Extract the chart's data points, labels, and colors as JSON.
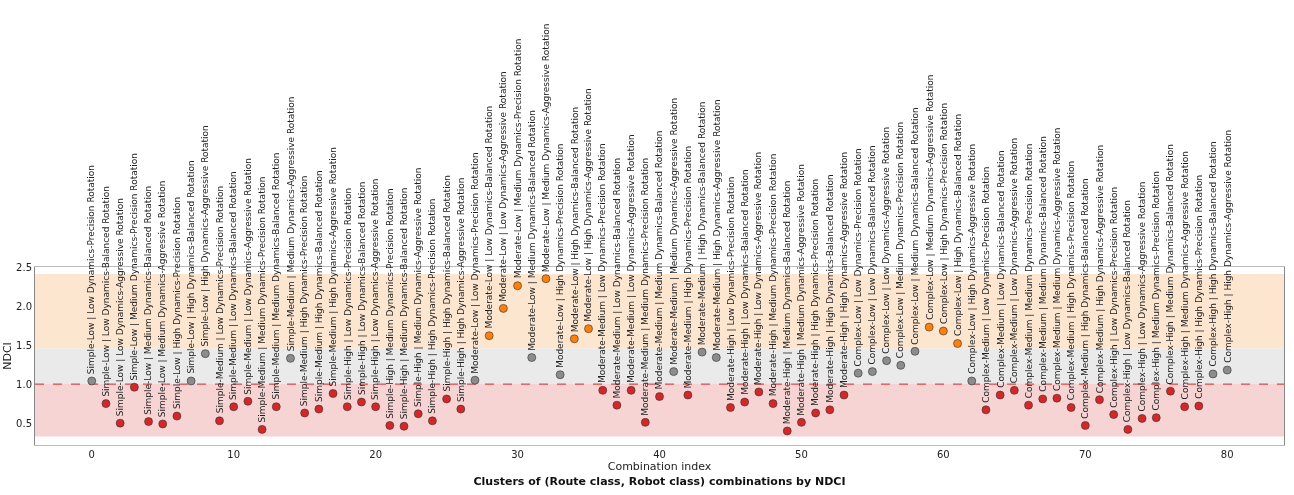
{
  "chart_data": {
    "type": "scatter",
    "title": "Clusters of (Route class, Robot class) combinations by NDCI",
    "xlabel": "Combination index",
    "ylabel": "NDCI",
    "x": [
      0,
      1,
      2,
      3,
      4,
      5,
      6,
      7,
      8,
      9,
      10,
      11,
      12,
      13,
      14,
      15,
      16,
      17,
      18,
      19,
      20,
      21,
      22,
      23,
      24,
      25,
      26,
      27,
      28,
      29,
      30,
      31,
      32,
      33,
      34,
      35,
      36,
      37,
      38,
      39,
      40,
      41,
      42,
      43,
      44,
      45,
      46,
      47,
      48,
      49,
      50,
      51,
      52,
      53,
      54,
      55,
      56,
      57,
      58,
      59,
      60,
      61,
      62,
      63,
      64,
      65,
      66,
      67,
      68,
      69,
      70,
      71,
      72,
      73,
      74,
      75,
      76,
      77,
      78,
      79,
      80
    ],
    "values": [
      1.04,
      0.75,
      0.5,
      0.96,
      0.52,
      0.49,
      0.59,
      1.04,
      1.39,
      0.53,
      0.71,
      0.78,
      0.42,
      0.71,
      1.33,
      0.63,
      0.68,
      0.88,
      0.71,
      0.77,
      0.71,
      0.47,
      0.46,
      0.62,
      0.53,
      0.81,
      0.68,
      1.05,
      1.62,
      1.97,
      2.26,
      1.34,
      2.35,
      1.12,
      1.58,
      1.71,
      0.92,
      0.73,
      0.92,
      0.51,
      0.84,
      1.16,
      0.86,
      1.41,
      1.34,
      0.7,
      0.77,
      0.9,
      0.75,
      0.4,
      0.51,
      0.63,
      0.67,
      0.86,
      1.14,
      1.16,
      1.3,
      1.24,
      1.42,
      1.73,
      1.68,
      1.52,
      1.04,
      0.67,
      0.86,
      0.92,
      0.73,
      0.81,
      0.82,
      0.7,
      0.47,
      0.8,
      0.61,
      0.42,
      0.56,
      0.57,
      0.91,
      0.71,
      0.72,
      1.13,
      1.18
    ],
    "colors": [
      "#8c8c8c",
      "#d62728",
      "#d62728",
      "#d62728",
      "#d62728",
      "#d62728",
      "#d62728",
      "#8c8c8c",
      "#8c8c8c",
      "#d62728",
      "#d62728",
      "#d62728",
      "#d62728",
      "#d62728",
      "#8c8c8c",
      "#d62728",
      "#d62728",
      "#d62728",
      "#d62728",
      "#d62728",
      "#d62728",
      "#d62728",
      "#d62728",
      "#d62728",
      "#d62728",
      "#d62728",
      "#d62728",
      "#8c8c8c",
      "#ff7f0e",
      "#ff7f0e",
      "#ff7f0e",
      "#8c8c8c",
      "#ff7f0e",
      "#8c8c8c",
      "#ff7f0e",
      "#ff7f0e",
      "#d62728",
      "#d62728",
      "#d62728",
      "#d62728",
      "#d62728",
      "#8c8c8c",
      "#d62728",
      "#8c8c8c",
      "#8c8c8c",
      "#d62728",
      "#d62728",
      "#d62728",
      "#d62728",
      "#d62728",
      "#d62728",
      "#d62728",
      "#d62728",
      "#d62728",
      "#8c8c8c",
      "#8c8c8c",
      "#8c8c8c",
      "#8c8c8c",
      "#8c8c8c",
      "#ff7f0e",
      "#ff7f0e",
      "#ff7f0e",
      "#8c8c8c",
      "#d62728",
      "#d62728",
      "#d62728",
      "#d62728",
      "#d62728",
      "#d62728",
      "#d62728",
      "#d62728",
      "#d62728",
      "#d62728",
      "#d62728",
      "#d62728",
      "#d62728",
      "#d62728",
      "#d62728",
      "#d62728",
      "#8c8c8c",
      "#8c8c8c"
    ],
    "marker": "circle",
    "xlim": [
      -4,
      84
    ],
    "xticks": [
      0,
      10,
      20,
      30,
      40,
      50,
      60,
      70,
      80
    ],
    "ylim": [
      0.22,
      2.5
    ],
    "yticks": [
      0.5,
      {
        "value": 1,
        "label": "1.0"
      },
      1.5,
      {
        "value": 2,
        "label": "2.0"
      },
      2.5
    ],
    "grid": false,
    "bands": [
      {
        "axis": "y",
        "from": 0.33,
        "to": 1.0,
        "color": "#f7d4d4"
      },
      {
        "axis": "y",
        "from": 1.0,
        "to": 1.46,
        "color": "#eaeaea"
      },
      {
        "axis": "y",
        "from": 1.46,
        "to": 2.41,
        "color": "#fde6cf"
      }
    ],
    "ref_lines": [
      {
        "axis": "y",
        "value": 1.0,
        "color": "#d62728",
        "line_style": "dashed"
      }
    ],
    "annotations": [
      {
        "text": "Simple-Low | Low Dynamics-Precision Rotation",
        "x": 0,
        "y": 1.04
      },
      {
        "text": "Simple-Low | Low Dynamics-Balanced Rotation",
        "x": 1,
        "y": 0.75
      },
      {
        "text": "Simple-Low | Low Dynamics-Aggressive Rotation",
        "x": 2,
        "y": 0.5
      },
      {
        "text": "Simple-Low | Medium Dynamics-Precision Rotation",
        "x": 3,
        "y": 0.96
      },
      {
        "text": "Simple-Low | Medium Dynamics-Balanced Rotation",
        "x": 4,
        "y": 0.52
      },
      {
        "text": "Simple-Low | Medium Dynamics-Aggressive Rotation",
        "x": 5,
        "y": 0.49
      },
      {
        "text": "Simple-Low | High Dynamics-Precision Rotation",
        "x": 6,
        "y": 0.59
      },
      {
        "text": "Simple-Low | High Dynamics-Balanced Rotation",
        "x": 7,
        "y": 1.04
      },
      {
        "text": "Simple-Low | High Dynamics-Aggressive Rotation",
        "x": 8,
        "y": 1.39
      },
      {
        "text": "Simple-Medium | Low Dynamics-Precision Rotation",
        "x": 9,
        "y": 0.53
      },
      {
        "text": "Simple-Medium | Low Dynamics-Balanced Rotation",
        "x": 10,
        "y": 0.71
      },
      {
        "text": "Simple-Medium | Low Dynamics-Aggressive Rotation",
        "x": 11,
        "y": 0.78
      },
      {
        "text": "Simple-Medium | Medium Dynamics-Precision Rotation",
        "x": 12,
        "y": 0.42
      },
      {
        "text": "Simple-Medium | Medium Dynamics-Balanced Rotation",
        "x": 13,
        "y": 0.71
      },
      {
        "text": "Simple-Medium | Medium Dynamics-Aggressive Rotation",
        "x": 14,
        "y": 1.33
      },
      {
        "text": "Simple-Medium | High Dynamics-Precision Rotation",
        "x": 15,
        "y": 0.63
      },
      {
        "text": "Simple-Medium | High Dynamics-Balanced Rotation",
        "x": 16,
        "y": 0.68
      },
      {
        "text": "Simple-Medium | High Dynamics-Aggressive Rotation",
        "x": 17,
        "y": 0.88
      },
      {
        "text": "Simple-High | Low Dynamics-Precision Rotation",
        "x": 18,
        "y": 0.71
      },
      {
        "text": "Simple-High | Low Dynamics-Balanced Rotation",
        "x": 19,
        "y": 0.77
      },
      {
        "text": "Simple-High | Low Dynamics-Aggressive Rotation",
        "x": 20,
        "y": 0.71
      },
      {
        "text": "Simple-High | Medium Dynamics-Precision Rotation",
        "x": 21,
        "y": 0.47
      },
      {
        "text": "Simple-High | Medium Dynamics-Balanced Rotation",
        "x": 22,
        "y": 0.46
      },
      {
        "text": "Simple-High | Medium Dynamics-Aggressive Rotation",
        "x": 23,
        "y": 0.62
      },
      {
        "text": "Simple-High | High Dynamics-Precision Rotation",
        "x": 24,
        "y": 0.53
      },
      {
        "text": "Simple-High | High Dynamics-Balanced Rotation",
        "x": 25,
        "y": 0.81
      },
      {
        "text": "Simple-High | High Dynamics-Aggressive Rotation",
        "x": 26,
        "y": 0.68
      },
      {
        "text": "Moderate-Low | Low Dynamics-Precision Rotation",
        "x": 27,
        "y": 1.05
      },
      {
        "text": "Moderate-Low | Low Dynamics-Balanced Rotation",
        "x": 28,
        "y": 1.62
      },
      {
        "text": "Moderate-Low | Low Dynamics-Aggressive Rotation",
        "x": 29,
        "y": 1.97
      },
      {
        "text": "Moderate-Low | Medium Dynamics-Precision Rotation",
        "x": 30,
        "y": 2.26
      },
      {
        "text": "Moderate-Low | Medium Dynamics-Balanced Rotation",
        "x": 31,
        "y": 1.34
      },
      {
        "text": "Moderate-Low | Medium Dynamics-Aggressive Rotation",
        "x": 32,
        "y": 2.35
      },
      {
        "text": "Moderate-Low | High Dynamics-Precision Rotation",
        "x": 33,
        "y": 1.12
      },
      {
        "text": "Moderate-Low | High Dynamics-Balanced Rotation",
        "x": 34,
        "y": 1.58
      },
      {
        "text": "Moderate-Low | High Dynamics-Aggressive Rotation",
        "x": 35,
        "y": 1.71
      },
      {
        "text": "Moderate-Medium | Low Dynamics-Precision Rotation",
        "x": 36,
        "y": 0.92
      },
      {
        "text": "Moderate-Medium | Low Dynamics-Balanced Rotation",
        "x": 37,
        "y": 0.73
      },
      {
        "text": "Moderate-Medium | Low Dynamics-Aggressive Rotation",
        "x": 38,
        "y": 0.92
      },
      {
        "text": "Moderate-Medium | Medium Dynamics-Precision Rotation",
        "x": 39,
        "y": 0.51
      },
      {
        "text": "Moderate-Medium | Medium Dynamics-Balanced Rotation",
        "x": 40,
        "y": 0.84
      },
      {
        "text": "Moderate-Medium | Medium Dynamics-Aggressive Rotation",
        "x": 41,
        "y": 1.16
      },
      {
        "text": "Moderate-Medium | High Dynamics-Precision Rotation",
        "x": 42,
        "y": 0.86
      },
      {
        "text": "Moderate-Medium | High Dynamics-Balanced Rotation",
        "x": 43,
        "y": 1.41
      },
      {
        "text": "Moderate-Medium | High Dynamics-Aggressive Rotation",
        "x": 44,
        "y": 1.34
      },
      {
        "text": "Moderate-High | Low Dynamics-Precision Rotation",
        "x": 45,
        "y": 0.7
      },
      {
        "text": "Moderate-High | Low Dynamics-Balanced Rotation",
        "x": 46,
        "y": 0.77
      },
      {
        "text": "Moderate-High | Low Dynamics-Aggressive Rotation",
        "x": 47,
        "y": 0.9
      },
      {
        "text": "Moderate-High | Medium Dynamics-Precision Rotation",
        "x": 48,
        "y": 0.75
      },
      {
        "text": "Moderate-High | Medium Dynamics-Balanced Rotation",
        "x": 49,
        "y": 0.4
      },
      {
        "text": "Moderate-High | Medium Dynamics-Aggressive Rotation",
        "x": 50,
        "y": 0.51
      },
      {
        "text": "Moderate-High | High Dynamics-Precision Rotation",
        "x": 51,
        "y": 0.63
      },
      {
        "text": "Moderate-High | High Dynamics-Balanced Rotation",
        "x": 52,
        "y": 0.67
      },
      {
        "text": "Moderate-High | High Dynamics-Aggressive Rotation",
        "x": 53,
        "y": 0.86
      },
      {
        "text": "Complex-Low | Low Dynamics-Precision Rotation",
        "x": 54,
        "y": 1.14
      },
      {
        "text": "Complex-Low | Low Dynamics-Balanced Rotation",
        "x": 55,
        "y": 1.16
      },
      {
        "text": "Complex-Low | Low Dynamics-Aggressive Rotation",
        "x": 56,
        "y": 1.3
      },
      {
        "text": "Complex-Low | Medium Dynamics-Precision Rotation",
        "x": 57,
        "y": 1.24
      },
      {
        "text": "Complex-Low | Medium Dynamics-Balanced Rotation",
        "x": 58,
        "y": 1.42
      },
      {
        "text": "Complex-Low | Medium Dynamics-Aggressive Rotation",
        "x": 59,
        "y": 1.73
      },
      {
        "text": "Complex-Low | High Dynamics-Precision Rotation",
        "x": 60,
        "y": 1.68
      },
      {
        "text": "Complex-Low | High Dynamics-Balanced Rotation",
        "x": 61,
        "y": 1.52
      },
      {
        "text": "Complex-Low | High Dynamics-Aggressive Rotation",
        "x": 62,
        "y": 1.04
      },
      {
        "text": "Complex-Medium | Low Dynamics-Precision Rotation",
        "x": 63,
        "y": 0.67
      },
      {
        "text": "Complex-Medium | Low Dynamics-Balanced Rotation",
        "x": 64,
        "y": 0.86
      },
      {
        "text": "Complex-Medium | Low Dynamics-Aggressive Rotation",
        "x": 65,
        "y": 0.92
      },
      {
        "text": "Complex-Medium | Medium Dynamics-Precision Rotation",
        "x": 66,
        "y": 0.73
      },
      {
        "text": "Complex-Medium | Medium Dynamics-Balanced Rotation",
        "x": 67,
        "y": 0.81
      },
      {
        "text": "Complex-Medium | Medium Dynamics-Aggressive Rotation",
        "x": 68,
        "y": 0.82
      },
      {
        "text": "Complex-Medium | High Dynamics-Precision Rotation",
        "x": 69,
        "y": 0.7
      },
      {
        "text": "Complex-Medium | High Dynamics-Balanced Rotation",
        "x": 70,
        "y": 0.47
      },
      {
        "text": "Complex-Medium | High Dynamics-Aggressive Rotation",
        "x": 71,
        "y": 0.8
      },
      {
        "text": "Complex-High | Low Dynamics-Precision Rotation",
        "x": 72,
        "y": 0.61
      },
      {
        "text": "Complex-High | Low Dynamics-Balanced Rotation",
        "x": 73,
        "y": 0.42
      },
      {
        "text": "Complex-High | Low Dynamics-Aggressive Rotation",
        "x": 74,
        "y": 0.56
      },
      {
        "text": "Complex-High | Medium Dynamics-Precision Rotation",
        "x": 75,
        "y": 0.57
      },
      {
        "text": "Complex-High | Medium Dynamics-Balanced Rotation",
        "x": 76,
        "y": 0.91
      },
      {
        "text": "Complex-High | Medium Dynamics-Aggressive Rotation",
        "x": 77,
        "y": 0.71
      },
      {
        "text": "Complex-High | High Dynamics-Precision Rotation",
        "x": 78,
        "y": 0.72
      },
      {
        "text": "Complex-High | High Dynamics-Balanced Rotation",
        "x": 79,
        "y": 1.13
      },
      {
        "text": "Complex-High | High Dynamics-Aggressive Rotation",
        "x": 80,
        "y": 1.18
      }
    ]
  }
}
